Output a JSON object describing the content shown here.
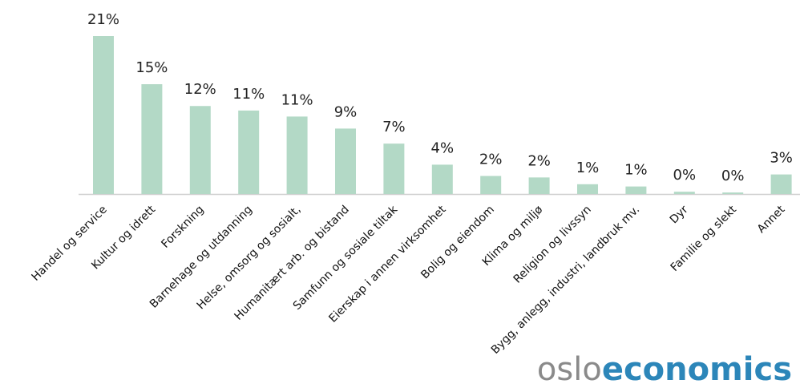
{
  "chart_data": {
    "type": "bar",
    "categories": [
      "Handel og service",
      "Kultur og idrett",
      "Forskning",
      "Barnehage og utdanning",
      "Helse, omsorg og sosialt,",
      "Humanitært arb. og bistand",
      "Samfunn og sosiale tiltak",
      "Eierskap i annen virksomhet",
      "Bolig og eiendom",
      "Klima og miljø",
      "Religion og livssyn",
      "Bygg, anlegg, industri, landbruk mv.",
      "Dyr",
      "Familie og slekt",
      "Annet"
    ],
    "values": [
      21,
      15,
      12,
      11,
      11,
      9,
      7,
      4,
      2,
      2,
      1,
      1,
      0,
      0,
      3
    ],
    "value_labels": [
      "21%",
      "15%",
      "12%",
      "11%",
      "11%",
      "9%",
      "7%",
      "4%",
      "2%",
      "2%",
      "1%",
      "1%",
      "0%",
      "0%",
      "3%"
    ],
    "raw_heights": [
      21.0,
      14.6,
      11.7,
      11.1,
      10.3,
      8.7,
      6.7,
      3.9,
      2.4,
      2.2,
      1.3,
      1.0,
      0.3,
      0.2,
      2.6
    ],
    "ylim": [
      0,
      21
    ],
    "bar_color": "#b3d9c6",
    "axis_color": "#d0d0d0",
    "grid": false,
    "legend": "none"
  },
  "logo": {
    "light_text": "oslo",
    "bold_text": "economics",
    "light_color": "#8a8a8a",
    "bold_color": "#2c86b9"
  }
}
